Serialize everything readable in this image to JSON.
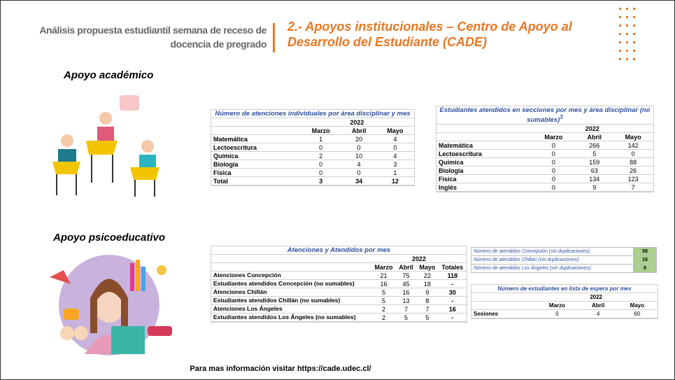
{
  "header": {
    "subtitle": "Análisis propuesta estudiantil semana de receso de docencia de pregrado",
    "title": "2.- Apoyos institucionales – Centro de Apoyo al Desarrollo del Estudiante (CADE)"
  },
  "sections": [
    "Apoyo académico",
    "Apoyo psicoeducativo"
  ],
  "table1": {
    "title": "Número de atenciones individuales por área disciplinar y mes",
    "year": "2022",
    "columns": [
      "Marzo",
      "Abril",
      "Mayo"
    ],
    "rows": [
      [
        "Matemática",
        1,
        20,
        4
      ],
      [
        "Lectoescritura",
        0,
        0,
        0
      ],
      [
        "Química",
        2,
        10,
        4
      ],
      [
        "Biología",
        0,
        4,
        3
      ],
      [
        "Física",
        0,
        0,
        1
      ],
      [
        "Total",
        3,
        34,
        12
      ]
    ]
  },
  "table2": {
    "title": "Estudiantes atendidos en secciones por mes y área disciplinar (no sumables)",
    "title_note": "3",
    "year": "2022",
    "columns": [
      "Marzo",
      "Abril",
      "Mayo"
    ],
    "rows": [
      [
        "Matemática",
        0,
        266,
        142
      ],
      [
        "Lectoescritura",
        0,
        5,
        0
      ],
      [
        "Química",
        0,
        159,
        88
      ],
      [
        "Biología",
        0,
        63,
        26
      ],
      [
        "Física",
        0,
        134,
        123
      ],
      [
        "Inglés",
        0,
        9,
        7
      ]
    ]
  },
  "table3": {
    "title": "Atenciones y Atendidos por mes",
    "year": "2022",
    "columns": [
      "Marzo",
      "Abril",
      "Mayo",
      "Totales"
    ],
    "rows": [
      [
        "Atenciones Concepción",
        21,
        75,
        22,
        118
      ],
      [
        "Estudiantes atendidos Concepción (no sumables)",
        16,
        45,
        18,
        "-"
      ],
      [
        "Atenciones Chillán",
        5,
        16,
        9,
        30
      ],
      [
        "Estudiantes atendidos Chillán (no sumables)",
        5,
        13,
        8,
        "-"
      ],
      [
        "Atenciones Los Ángeles",
        2,
        7,
        7,
        16
      ],
      [
        "Estudiantes atendidos Los Ángeles (no sumables)",
        2,
        5,
        5,
        "-"
      ]
    ]
  },
  "table4": {
    "rows": [
      [
        "Número de atendidos Concepción (sin duplicaciones):",
        59
      ],
      [
        "Número de atendidos Chillán (sin duplicaciones):",
        16
      ],
      [
        "Número de atendidos Los Ángeles (sin duplicaciones):",
        8
      ]
    ]
  },
  "table5": {
    "title": "Número de estudiantes en lista de espera por mes",
    "year": "2022",
    "columns": [
      "Marzo",
      "Abril",
      "Mayo"
    ],
    "rows": [
      [
        "Sesiones",
        0,
        4,
        60
      ]
    ]
  },
  "footer": "Para mas información visitar https://cade.udec.cl/"
}
